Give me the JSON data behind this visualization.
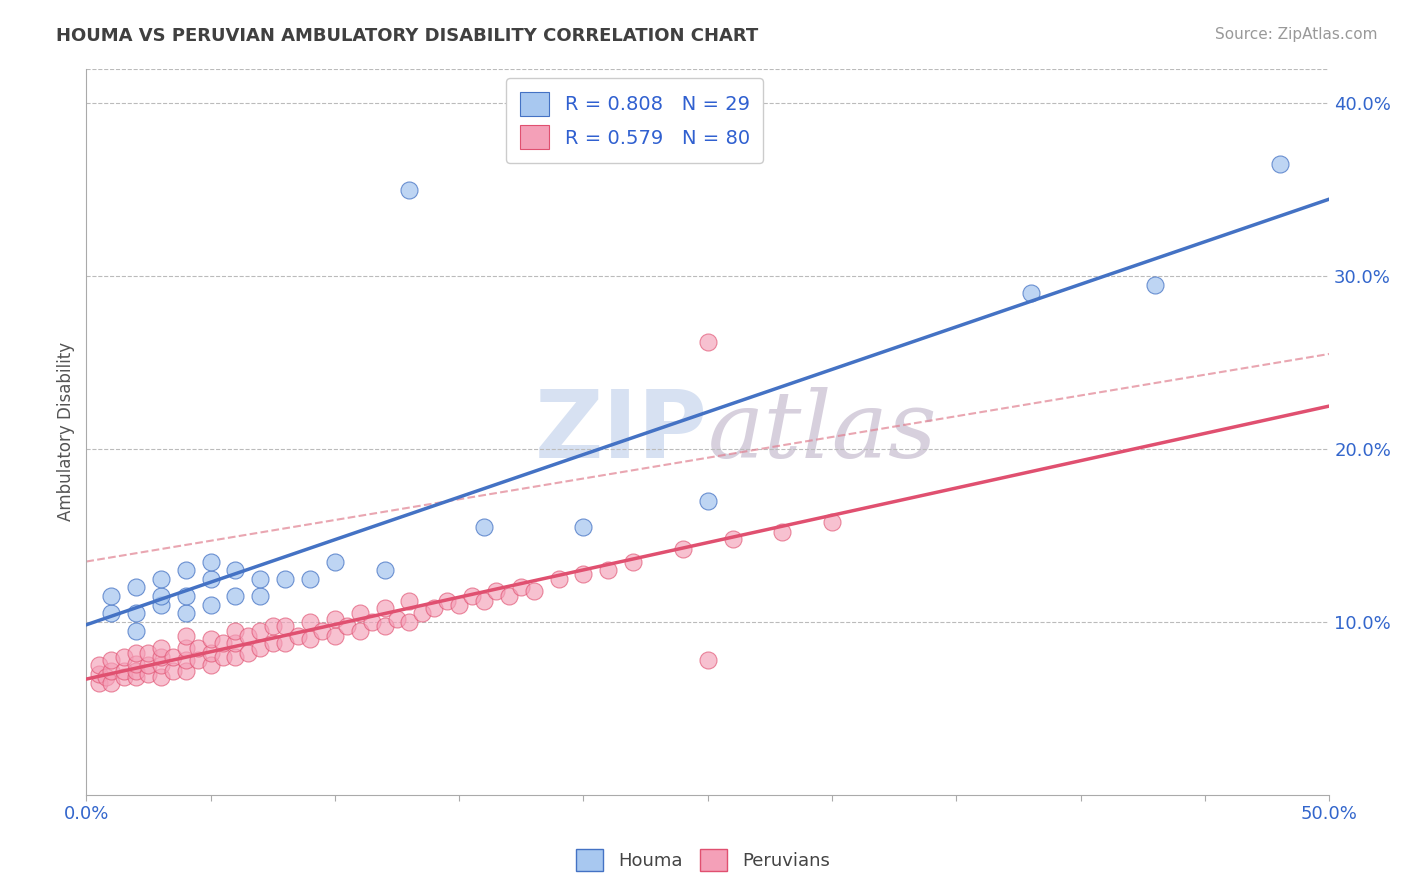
{
  "title": "HOUMA VS PERUVIAN AMBULATORY DISABILITY CORRELATION CHART",
  "source": "Source: ZipAtlas.com",
  "ylabel": "Ambulatory Disability",
  "xlim": [
    0.0,
    0.5
  ],
  "ylim": [
    0.0,
    0.42
  ],
  "xticks": [
    0.0,
    0.05,
    0.1,
    0.15,
    0.2,
    0.25,
    0.3,
    0.35,
    0.4,
    0.45,
    0.5
  ],
  "yticks_right": [
    0.1,
    0.2,
    0.3,
    0.4
  ],
  "ytick_right_labels": [
    "10.0%",
    "20.0%",
    "30.0%",
    "40.0%"
  ],
  "houma_R": 0.808,
  "houma_N": 29,
  "peruvian_R": 0.579,
  "peruvian_N": 80,
  "houma_color": "#A8C8F0",
  "peruvian_color": "#F4A0B8",
  "houma_line_color": "#4472C4",
  "peruvian_line_color": "#E05070",
  "dashed_line_color": "#E08090",
  "background_color": "#FFFFFF",
  "grid_color": "#BBBBBB",
  "title_color": "#404040",
  "legend_text_color": "#3060D0",
  "houma_scatter_x": [
    0.01,
    0.01,
    0.02,
    0.02,
    0.02,
    0.03,
    0.03,
    0.03,
    0.04,
    0.04,
    0.04,
    0.05,
    0.05,
    0.05,
    0.06,
    0.06,
    0.07,
    0.07,
    0.08,
    0.09,
    0.1,
    0.12,
    0.13,
    0.16,
    0.2,
    0.25,
    0.38,
    0.43,
    0.48
  ],
  "houma_scatter_y": [
    0.105,
    0.115,
    0.095,
    0.105,
    0.12,
    0.11,
    0.115,
    0.125,
    0.105,
    0.115,
    0.13,
    0.11,
    0.125,
    0.135,
    0.115,
    0.13,
    0.115,
    0.125,
    0.125,
    0.125,
    0.135,
    0.13,
    0.35,
    0.155,
    0.155,
    0.17,
    0.29,
    0.295,
    0.365
  ],
  "peruvian_scatter_x": [
    0.005,
    0.005,
    0.005,
    0.008,
    0.01,
    0.01,
    0.01,
    0.015,
    0.015,
    0.015,
    0.02,
    0.02,
    0.02,
    0.02,
    0.025,
    0.025,
    0.025,
    0.03,
    0.03,
    0.03,
    0.03,
    0.035,
    0.035,
    0.04,
    0.04,
    0.04,
    0.04,
    0.045,
    0.045,
    0.05,
    0.05,
    0.05,
    0.055,
    0.055,
    0.06,
    0.06,
    0.06,
    0.065,
    0.065,
    0.07,
    0.07,
    0.075,
    0.075,
    0.08,
    0.08,
    0.085,
    0.09,
    0.09,
    0.095,
    0.1,
    0.1,
    0.105,
    0.11,
    0.11,
    0.115,
    0.12,
    0.12,
    0.125,
    0.13,
    0.13,
    0.135,
    0.14,
    0.145,
    0.15,
    0.155,
    0.16,
    0.165,
    0.17,
    0.175,
    0.18,
    0.19,
    0.2,
    0.21,
    0.22,
    0.24,
    0.26,
    0.28,
    0.3,
    0.25,
    0.25
  ],
  "peruvian_scatter_y": [
    0.065,
    0.07,
    0.075,
    0.068,
    0.065,
    0.072,
    0.078,
    0.068,
    0.072,
    0.08,
    0.068,
    0.072,
    0.076,
    0.082,
    0.07,
    0.075,
    0.082,
    0.068,
    0.075,
    0.08,
    0.085,
    0.072,
    0.08,
    0.072,
    0.078,
    0.085,
    0.092,
    0.078,
    0.085,
    0.075,
    0.082,
    0.09,
    0.08,
    0.088,
    0.08,
    0.088,
    0.095,
    0.082,
    0.092,
    0.085,
    0.095,
    0.088,
    0.098,
    0.088,
    0.098,
    0.092,
    0.09,
    0.1,
    0.095,
    0.092,
    0.102,
    0.098,
    0.095,
    0.105,
    0.1,
    0.098,
    0.108,
    0.102,
    0.1,
    0.112,
    0.105,
    0.108,
    0.112,
    0.11,
    0.115,
    0.112,
    0.118,
    0.115,
    0.12,
    0.118,
    0.125,
    0.128,
    0.13,
    0.135,
    0.142,
    0.148,
    0.152,
    0.158,
    0.262,
    0.078
  ]
}
